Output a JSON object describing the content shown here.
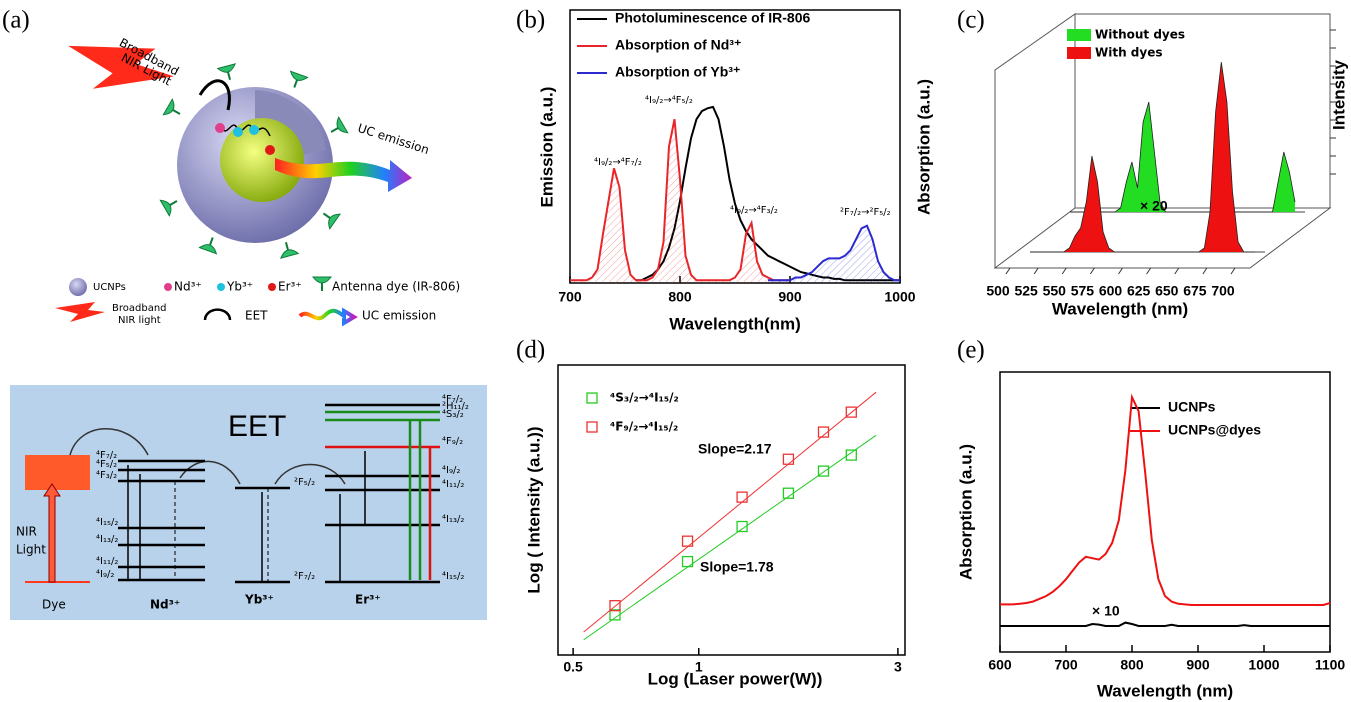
{
  "panel_labels": [
    "(a)",
    "(b)",
    "(c)",
    "(d)",
    "(e)"
  ],
  "schematic": {
    "light_label": [
      "Broadband",
      "NIR Light"
    ],
    "emission_label": "UC emission",
    "legend": {
      "ucnps": "UCNPs",
      "nd": "Nd³⁺",
      "yb": "Yb³⁺",
      "er": "Er³⁺",
      "antenna": "Antenna dye (IR-806)",
      "light": [
        "Broadband",
        "NIR light"
      ],
      "eet": "EET",
      "uc": "UC emission"
    }
  },
  "energy_diagram": {
    "title": "EET",
    "nir": [
      "NIR",
      "Light"
    ],
    "dye": "Dye",
    "ions": [
      "Nd³⁺",
      "Yb³⁺",
      "Er³⁺"
    ],
    "nd_levels": [
      "⁴F₇/₂",
      "⁴F₅/₂",
      "⁴F₃/₂",
      "⁴I₁₅/₂",
      "⁴I₁₃/₂",
      "⁴I₁₁/₂",
      "⁴I₉/₂"
    ],
    "yb_levels": [
      "²F₅/₂",
      "²F₇/₂"
    ],
    "er_levels": [
      "⁴F₇/₂",
      "²H₁₁/₂",
      "⁴S₃/₂",
      "⁴F₉/₂",
      "⁴I₉/₂",
      "⁴I₁₁/₂",
      "⁴I₁₃/₂",
      "⁴I₁₅/₂"
    ]
  },
  "chart_data": [
    {
      "type": "line",
      "xlabel": "Wavelength(nm)",
      "ylabel": "Emission (a.u.)",
      "y2label": "Absorption (a.u.)",
      "x": [
        700,
        705,
        710,
        715,
        720,
        725,
        730,
        735,
        740,
        745,
        750,
        755,
        760,
        765,
        770,
        775,
        780,
        785,
        790,
        795,
        800,
        805,
        810,
        815,
        820,
        825,
        830,
        835,
        840,
        845,
        850,
        855,
        860,
        865,
        870,
        875,
        880,
        885,
        890,
        895,
        900,
        905,
        910,
        915,
        920,
        925,
        930,
        935,
        940,
        945,
        950,
        955,
        960,
        965,
        970,
        975,
        980,
        985,
        990,
        995,
        1000
      ],
      "xlim": [
        700,
        1000
      ],
      "xticks": [
        700,
        800,
        900,
        1000
      ],
      "ylim": [
        0,
        1
      ],
      "series": [
        {
          "name": "Photoluminescence of IR-806",
          "color": "#000000",
          "values": [
            null,
            null,
            null,
            null,
            null,
            null,
            null,
            null,
            null,
            null,
            null,
            null,
            0.01,
            0.01,
            0.02,
            0.03,
            0.05,
            0.08,
            0.13,
            0.2,
            0.3,
            0.42,
            0.53,
            0.6,
            0.63,
            0.64,
            0.645,
            0.6,
            0.5,
            0.38,
            0.29,
            0.23,
            0.19,
            0.16,
            0.14,
            0.12,
            0.1,
            0.09,
            0.08,
            0.07,
            0.06,
            0.05,
            0.04,
            0.035,
            0.03,
            0.025,
            0.02,
            0.02,
            0.015,
            0.015,
            0.01,
            0.01,
            0.01,
            0.01,
            0.01,
            0.01,
            0.01,
            0.01,
            0.01,
            0.01,
            0.01
          ]
        },
        {
          "name": "Absorption of Nd³⁺",
          "color": "#e8262a",
          "hatched": true,
          "values": [
            0.01,
            0.01,
            0.01,
            0.01,
            0.02,
            0.05,
            0.18,
            0.3,
            0.42,
            0.35,
            0.12,
            0.03,
            0.01,
            0.01,
            0.01,
            0.02,
            0.05,
            0.15,
            0.5,
            0.6,
            0.38,
            0.1,
            0.03,
            0.01,
            0.01,
            0.01,
            0.01,
            0.01,
            0.01,
            0.01,
            0.02,
            0.05,
            0.18,
            0.22,
            0.08,
            0.03,
            0.02,
            0.01,
            0.01,
            0.01,
            0.01,
            null,
            null,
            null,
            null,
            null,
            null,
            null,
            null,
            null,
            null,
            null,
            null,
            null,
            null,
            null,
            null,
            null,
            null,
            null,
            null
          ]
        },
        {
          "name": "Absorption of Yb³⁺",
          "color": "#2a2ad0",
          "hatched": true,
          "values": [
            null,
            null,
            null,
            null,
            null,
            null,
            null,
            null,
            null,
            null,
            null,
            null,
            null,
            null,
            null,
            null,
            null,
            null,
            null,
            null,
            null,
            null,
            null,
            null,
            null,
            null,
            null,
            null,
            null,
            null,
            null,
            null,
            null,
            null,
            null,
            null,
            0.01,
            0.01,
            0.01,
            0.01,
            0.01,
            0.02,
            0.02,
            0.03,
            0.04,
            0.06,
            0.08,
            0.09,
            0.09,
            0.09,
            0.1,
            0.12,
            0.16,
            0.2,
            0.21,
            0.16,
            0.08,
            0.04,
            0.02,
            0.01,
            0.01
          ]
        }
      ],
      "annotations": [
        "⁴I₉/₂→⁴F₇/₂",
        "⁴I₉/₂→⁴F₅/₂",
        "⁴I₉/₂→⁴F₃/₂",
        "²F₇/₂→²F₅/₂"
      ]
    },
    {
      "type": "waterfall",
      "xlabel": "Wavelength (nm)",
      "zlabel": "Intensity",
      "x": [
        500,
        505,
        510,
        515,
        520,
        525,
        530,
        535,
        540,
        545,
        550,
        555,
        560,
        565,
        570,
        575,
        580,
        585,
        590,
        595,
        600,
        605,
        610,
        615,
        620,
        625,
        630,
        635,
        640,
        645,
        650,
        655,
        660,
        665,
        670,
        675,
        680,
        685,
        690,
        695,
        700
      ],
      "xlim": [
        500,
        700
      ],
      "xticks": [
        500,
        525,
        550,
        575,
        600,
        625,
        650,
        675,
        700
      ],
      "ylim": [
        0,
        1
      ],
      "series": [
        {
          "name": "Without dyes",
          "color": "#22dd22",
          "values": [
            0,
            0,
            0,
            0,
            0,
            0,
            0,
            0,
            0,
            0.02,
            0.15,
            0.25,
            0.12,
            0.45,
            0.55,
            0.3,
            0.05,
            0,
            0,
            0,
            0,
            0,
            0,
            0,
            0,
            0,
            0,
            0,
            0,
            0,
            0,
            0,
            0,
            0,
            0,
            0,
            0,
            0.15,
            0.3,
            0.2,
            0.05
          ]
        },
        {
          "name": "With dyes",
          "color": "#ee1111",
          "values": [
            0,
            0,
            0,
            0,
            0,
            0,
            0,
            0.02,
            0.08,
            0.12,
            0.25,
            0.48,
            0.35,
            0.1,
            0.02,
            0,
            0,
            0,
            0,
            0,
            0,
            0,
            0,
            0,
            0,
            0,
            0,
            0,
            0,
            0,
            0,
            0.02,
            0.2,
            0.7,
            0.95,
            0.75,
            0.3,
            0.05,
            0,
            0,
            0
          ]
        }
      ],
      "annotations": [
        "× 20"
      ]
    },
    {
      "type": "scatter",
      "xlabel": "Log  (Laser power(W))",
      "ylabel": "Log ( Intensity  (a.u.))",
      "xlog": true,
      "ylog": true,
      "xlim": [
        0.46,
        3.12
      ],
      "xticks": [
        0.5,
        1,
        3
      ],
      "ylim": [
        1,
        70
      ],
      "series": [
        {
          "name": "⁴S₃/₂→⁴I₁₅/₂",
          "color": "#22cc22",
          "x": [
            0.63,
            0.94,
            1.27,
            1.64,
            1.99,
            2.32
          ],
          "values": [
            1.8,
            3.93,
            6.57,
            10.7,
            14.8,
            18.7
          ],
          "fit_x": [
            0.53,
            2.66
          ],
          "fit_y": [
            1.25,
            25
          ]
        },
        {
          "name": "⁴F₉/₂→⁴I₁₅/₂",
          "color": "#ee3333",
          "x": [
            0.63,
            0.94,
            1.27,
            1.64,
            1.99,
            2.32
          ],
          "values": [
            2.06,
            5.3,
            10.1,
            17.6,
            26.2,
            35.1
          ],
          "fit_x": [
            0.53,
            2.66
          ],
          "fit_y": [
            1.4,
            47
          ]
        }
      ],
      "annotations": [
        "Slope=2.17",
        "Slope=1.78"
      ]
    },
    {
      "type": "line",
      "xlabel": "Wavelength (nm)",
      "ylabel": "Absorption (a.u.)",
      "x": [
        600,
        610,
        620,
        630,
        640,
        650,
        660,
        670,
        680,
        690,
        700,
        710,
        720,
        730,
        740,
        750,
        760,
        770,
        780,
        790,
        800,
        810,
        820,
        830,
        840,
        850,
        860,
        870,
        880,
        890,
        900,
        910,
        920,
        930,
        940,
        950,
        960,
        970,
        980,
        990,
        1000,
        1010,
        1020,
        1030,
        1040,
        1050,
        1060,
        1070,
        1080,
        1090,
        1100
      ],
      "xlim": [
        600,
        1100
      ],
      "xticks": [
        600,
        700,
        800,
        900,
        1000,
        1100
      ],
      "ylim": [
        0,
        1
      ],
      "series": [
        {
          "name": "UCNPs",
          "color": "#000000",
          "values": [
            0.093,
            0.093,
            0.093,
            0.093,
            0.093,
            0.093,
            0.093,
            0.093,
            0.093,
            0.093,
            0.093,
            0.093,
            0.093,
            0.093,
            0.1,
            0.098,
            0.093,
            0.093,
            0.093,
            0.105,
            0.1,
            0.093,
            0.093,
            0.093,
            0.093,
            0.093,
            0.097,
            0.093,
            0.093,
            0.093,
            0.093,
            0.093,
            0.093,
            0.093,
            0.093,
            0.093,
            0.093,
            0.096,
            0.093,
            0.093,
            0.093,
            0.093,
            0.093,
            0.093,
            0.093,
            0.093,
            0.093,
            0.093,
            0.093,
            0.093,
            0.093
          ]
        },
        {
          "name": "UCNPs@dyes",
          "color": "#ee1111",
          "values": [
            0.17,
            0.17,
            0.17,
            0.172,
            0.175,
            0.18,
            0.19,
            0.2,
            0.215,
            0.235,
            0.26,
            0.29,
            0.32,
            0.34,
            0.335,
            0.33,
            0.35,
            0.39,
            0.47,
            0.65,
            0.91,
            0.86,
            0.64,
            0.4,
            0.26,
            0.2,
            0.18,
            0.172,
            0.17,
            0.168,
            0.168,
            0.168,
            0.168,
            0.168,
            0.168,
            0.168,
            0.168,
            0.168,
            0.168,
            0.168,
            0.168,
            0.168,
            0.168,
            0.168,
            0.168,
            0.168,
            0.168,
            0.168,
            0.168,
            0.168,
            0.175
          ]
        }
      ],
      "annotations": [
        "× 10"
      ]
    }
  ]
}
